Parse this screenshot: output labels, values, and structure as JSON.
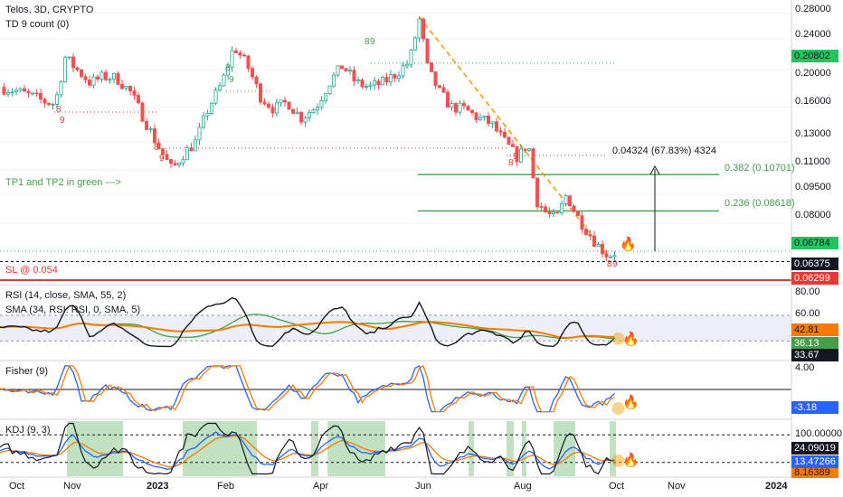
{
  "header": {
    "symbol_line": "Telos, 3D, CRYPTO",
    "indicator": "TD 9 count (0)"
  },
  "annotations": {
    "tp_note": "TP1 and TP2 in green --->",
    "sl_note": "SL @ 0.054",
    "measure": "0.04324 (67.83%) 4324",
    "fib_0382": "0.382 (0.10701)",
    "fib_0236": "0.236 (0.08618)",
    "td_marks": [
      {
        "label": "8",
        "x": 62,
        "y": 124,
        "color": "#e53935"
      },
      {
        "label": "9",
        "x": 66,
        "y": 136,
        "color": "#e53935"
      },
      {
        "label": "8",
        "x": 170,
        "y": 166,
        "color": "#e53935"
      },
      {
        "label": "9",
        "x": 176,
        "y": 178,
        "color": "#e53935"
      },
      {
        "label": "8",
        "x": 249,
        "y": 78,
        "color": "#43a047"
      },
      {
        "label": "9",
        "x": 253,
        "y": 91,
        "color": "#43a047"
      },
      {
        "label": "8",
        "x": 403,
        "y": 49,
        "color": "#43a047"
      },
      {
        "label": "9",
        "x": 409,
        "y": 49,
        "color": "#43a047"
      },
      {
        "label": "8",
        "x": 562,
        "y": 183,
        "color": "#e53935"
      },
      {
        "label": "9",
        "x": 567,
        "y": 176,
        "color": "#e53935"
      },
      {
        "label": "8",
        "x": 671,
        "y": 295,
        "color": "#e53935"
      },
      {
        "label": "9",
        "x": 677,
        "y": 295,
        "color": "#e53935"
      }
    ]
  },
  "price_axis": {
    "ticks": [
      "0.28000",
      "0.24000",
      "0.20000",
      "0.16000",
      "0.13000",
      "0.11000",
      "0.09500",
      "0.08000"
    ],
    "badges": [
      {
        "value": "0.20802",
        "bg": "#22c55e",
        "fg": "#131722"
      },
      {
        "value": "0.06784",
        "bg": "#22c55e",
        "fg": "#131722"
      },
      {
        "value": "0.06375",
        "bg": "#131722",
        "fg": "#ffffff"
      },
      {
        "value": "0.06299",
        "bg": "#e53935",
        "fg": "#ffffff"
      }
    ]
  },
  "rsi_panel": {
    "title": "RSI (14, close, SMA, 55, 2)",
    "subtitle": "SMA (34, RSI: RSI, 0, SMA, 5)",
    "ticks": [
      "80.00",
      "60.00"
    ],
    "badges": [
      {
        "value": "42.81",
        "bg": "#f57c00",
        "fg": "#131722"
      },
      {
        "value": "36.13",
        "bg": "#43a047",
        "fg": "#ffffff"
      },
      {
        "value": "33.67",
        "bg": "#131722",
        "fg": "#ffffff"
      }
    ]
  },
  "fisher_panel": {
    "title": "Fisher (9)",
    "ticks": [
      "4.00"
    ],
    "badges": [
      {
        "value": "-3.18",
        "bg": "#2962ff",
        "fg": "#ffffff"
      }
    ]
  },
  "kdj_panel": {
    "title": "KDJ (9, 3)",
    "ticks": [
      "100.00000"
    ],
    "badges": [
      {
        "value": "24.09019",
        "bg": "#131722",
        "fg": "#ffffff"
      },
      {
        "value": "13.47266",
        "bg": "#2962ff",
        "fg": "#ffffff"
      },
      {
        "value": "8.16389",
        "bg": "#f57c00",
        "fg": "#131722"
      }
    ]
  },
  "time_axis": {
    "labels": [
      "Oct",
      "Nov",
      "2023",
      "Feb",
      "Apr",
      "Jun",
      "Aug",
      "Oct",
      "Nov",
      "2024"
    ]
  },
  "colors": {
    "up": "#26a69a",
    "down": "#ef5350",
    "fib_line": "#43a047",
    "sl_line": "#e53935",
    "trend_dash": "#f59e0b",
    "ma_orange": "#f57c00",
    "ma_green": "#43a047",
    "fisher_blue": "#2962ff",
    "kdj_shade": "#a5d6a7"
  },
  "chart_data": {
    "type": "candlestick",
    "title": "Telos, 3D, CRYPTO",
    "scale": "log",
    "ylim": [
      0.058,
      0.29
    ],
    "levels": [
      {
        "name": "0.382",
        "value": 0.10701
      },
      {
        "name": "0.236",
        "value": 0.08618
      },
      {
        "name": "SL",
        "value": 0.054
      }
    ],
    "last_price": 0.06784,
    "x_range": [
      "2022-09-25",
      "2024-01-10"
    ],
    "close_path": [
      [
        "2022-09-25",
        0.18
      ],
      [
        "2022-10-05",
        0.176
      ],
      [
        "2022-10-15",
        0.17
      ],
      [
        "2022-10-22",
        0.165
      ],
      [
        "2022-10-28",
        0.163
      ],
      [
        "2022-11-03",
        0.215
      ],
      [
        "2022-11-10",
        0.2
      ],
      [
        "2022-11-18",
        0.185
      ],
      [
        "2022-11-26",
        0.192
      ],
      [
        "2022-12-04",
        0.19
      ],
      [
        "2022-12-12",
        0.175
      ],
      [
        "2022-12-20",
        0.15
      ],
      [
        "2022-12-28",
        0.128
      ],
      [
        "2023-01-06",
        0.11
      ],
      [
        "2023-01-12",
        0.12
      ],
      [
        "2023-01-20",
        0.13
      ],
      [
        "2023-01-28",
        0.16
      ],
      [
        "2023-02-05",
        0.185
      ],
      [
        "2023-02-12",
        0.23
      ],
      [
        "2023-02-20",
        0.205
      ],
      [
        "2023-02-28",
        0.17
      ],
      [
        "2023-03-08",
        0.158
      ],
      [
        "2023-03-16",
        0.165
      ],
      [
        "2023-03-24",
        0.15
      ],
      [
        "2023-04-02",
        0.16
      ],
      [
        "2023-04-10",
        0.185
      ],
      [
        "2023-04-18",
        0.205
      ],
      [
        "2023-04-26",
        0.185
      ],
      [
        "2023-05-04",
        0.18
      ],
      [
        "2023-05-12",
        0.185
      ],
      [
        "2023-05-20",
        0.195
      ],
      [
        "2023-05-28",
        0.21
      ],
      [
        "2023-06-03",
        0.27
      ],
      [
        "2023-06-08",
        0.2
      ],
      [
        "2023-06-15",
        0.175
      ],
      [
        "2023-06-22",
        0.16
      ],
      [
        "2023-06-30",
        0.158
      ],
      [
        "2023-07-08",
        0.15
      ],
      [
        "2023-07-16",
        0.145
      ],
      [
        "2023-07-24",
        0.13
      ],
      [
        "2023-08-01",
        0.118
      ],
      [
        "2023-08-07",
        0.13
      ],
      [
        "2023-08-12",
        0.092
      ],
      [
        "2023-08-18",
        0.085
      ],
      [
        "2023-08-24",
        0.082
      ],
      [
        "2023-08-30",
        0.095
      ],
      [
        "2023-09-05",
        0.084
      ],
      [
        "2023-09-12",
        0.076
      ],
      [
        "2023-09-18",
        0.07
      ],
      [
        "2023-09-24",
        0.066
      ],
      [
        "2023-09-30",
        0.068
      ]
    ],
    "rsi": {
      "ylim": [
        20,
        85
      ],
      "last": 33.67,
      "sma55_last": 42.81,
      "sma34_last": 36.13
    },
    "fisher": {
      "last": -3.18
    },
    "kdj": {
      "J": 24.09019,
      "K": 13.47266,
      "D": 8.16389
    }
  }
}
